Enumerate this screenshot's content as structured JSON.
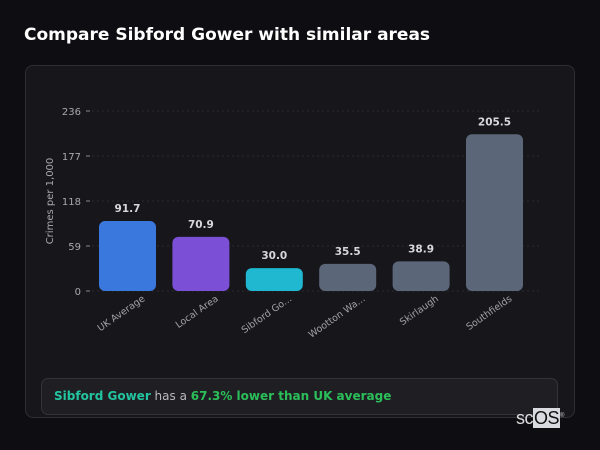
{
  "header": {
    "title": "Compare Sibford Gower with similar areas"
  },
  "chart_data": {
    "type": "bar",
    "title": "",
    "xlabel": "",
    "ylabel": "Crimes per 1,000",
    "ylim": [
      0,
      236
    ],
    "yticks": [
      0,
      59,
      118,
      177,
      236
    ],
    "grid": true,
    "categories": [
      "UK Average",
      "Local Area",
      "Sibford Go...",
      "Wootton Wa...",
      "Skirlaugh",
      "Southfields"
    ],
    "values": [
      91.7,
      70.9,
      30.0,
      35.5,
      38.9,
      205.5
    ],
    "labels": [
      "91.7",
      "70.9",
      "30.0",
      "35.5",
      "38.9",
      "205.5"
    ],
    "colors": [
      "#3b78dd",
      "#7b4fd6",
      "#1fb8d0",
      "#5b6679",
      "#5b6679",
      "#5b6679"
    ]
  },
  "summary": {
    "area": "Sibford Gower",
    "middle": " has a ",
    "comparison": "67.3% lower than UK average"
  },
  "logo": {
    "text_sc": "sc",
    "text_os": "OS",
    "mark": "®"
  }
}
